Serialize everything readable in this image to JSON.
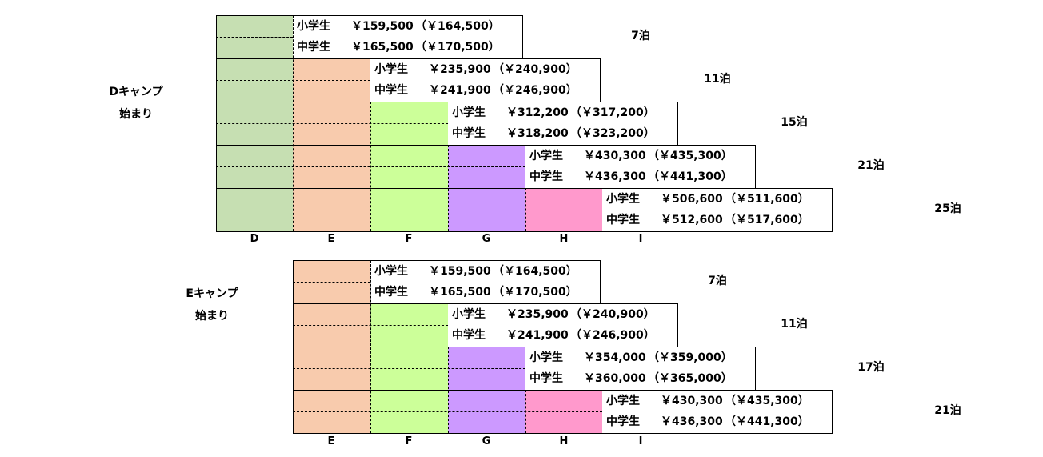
{
  "colors": {
    "D": "#c6dfb2",
    "E": "#f8cbad",
    "F": "#ccff99",
    "G": "#cc99ff",
    "H": "#ff99cc",
    "I": "#d9e1f2"
  },
  "sections": [
    {
      "camp_label_line1": "Dキャンプ",
      "camp_label_line2": "始まり",
      "columns": [
        "D",
        "E",
        "F",
        "G",
        "H",
        "I"
      ],
      "rows": [
        {
          "elem_label": "小学生",
          "elem_price": "￥159,500",
          "elem_alt": "（￥164,500）",
          "mid_label": "中学生",
          "mid_price": "￥165,500",
          "mid_alt": "（￥170,500）",
          "nights": "7泊"
        },
        {
          "elem_label": "小学生",
          "elem_price": "￥235,900",
          "elem_alt": "（￥240,900）",
          "mid_label": "中学生",
          "mid_price": "￥241,900",
          "mid_alt": "（￥246,900）",
          "nights": "11泊"
        },
        {
          "elem_label": "小学生",
          "elem_price": "￥312,200",
          "elem_alt": "（￥317,200）",
          "mid_label": "中学生",
          "mid_price": "￥318,200",
          "mid_alt": "（￥323,200）",
          "nights": "15泊"
        },
        {
          "elem_label": "小学生",
          "elem_price": "￥430,300",
          "elem_alt": "（￥435,300）",
          "mid_label": "中学生",
          "mid_price": "￥436,300",
          "mid_alt": "（￥441,300）",
          "nights": "21泊"
        },
        {
          "elem_label": "小学生",
          "elem_price": "￥506,600",
          "elem_alt": "（￥511,600）",
          "mid_label": "中学生",
          "mid_price": "￥512,600",
          "mid_alt": "（￥517,600）",
          "nights": "25泊"
        }
      ]
    },
    {
      "camp_label_line1": "Eキャンプ",
      "camp_label_line2": "始まり",
      "columns": [
        "E",
        "F",
        "G",
        "H",
        "I"
      ],
      "rows": [
        {
          "elem_label": "小学生",
          "elem_price": "￥159,500",
          "elem_alt": "（￥164,500）",
          "mid_label": "中学生",
          "mid_price": "￥165,500",
          "mid_alt": "（￥170,500）",
          "nights": "7泊"
        },
        {
          "elem_label": "小学生",
          "elem_price": "￥235,900",
          "elem_alt": "（￥240,900）",
          "mid_label": "中学生",
          "mid_price": "￥241,900",
          "mid_alt": "（￥246,900）",
          "nights": "11泊"
        },
        {
          "elem_label": "小学生",
          "elem_price": "￥354,000",
          "elem_alt": "（￥359,000）",
          "mid_label": "中学生",
          "mid_price": "￥360,000",
          "mid_alt": "（￥365,000）",
          "nights": "17泊"
        },
        {
          "elem_label": "小学生",
          "elem_price": "￥430,300",
          "elem_alt": "（￥435,300）",
          "mid_label": "中学生",
          "mid_price": "￥436,300",
          "mid_alt": "（￥441,300）",
          "nights": "21泊"
        }
      ]
    }
  ]
}
